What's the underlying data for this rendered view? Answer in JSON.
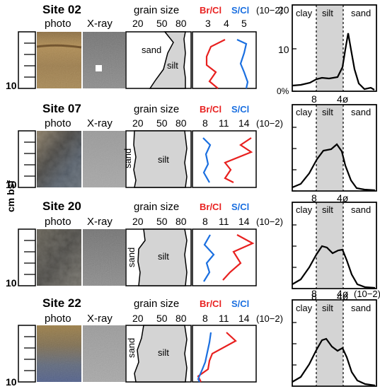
{
  "colors": {
    "br_cl": "#e8201f",
    "s_cl": "#1a6fe0",
    "silt_fill": "#d4d4d4"
  },
  "labels": {
    "photo": "photo",
    "xray": "X-ray",
    "grain_size": "grain size",
    "br_cl": "Br/Cl",
    "s_cl": "S/Cl",
    "exponent": "(10−2)",
    "cm_bsf": "cm bsf",
    "depth_max": "10",
    "grain_ticks": [
      "20",
      "50",
      "80"
    ],
    "zone_sand": "sand",
    "zone_silt": "silt",
    "zone_clay": "clay",
    "phi_8": "8",
    "phi_4": "4ø",
    "pct_20": "20",
    "pct_10": "10",
    "pct_0": "0%"
  },
  "sites": [
    {
      "name": "Site 02",
      "ratio_ticks": [
        "3",
        "4",
        "5"
      ]
    },
    {
      "name": "Site 07",
      "ratio_ticks": [
        "8",
        "11",
        "14"
      ]
    },
    {
      "name": "Site 20",
      "ratio_ticks": [
        "8",
        "11",
        "14"
      ]
    },
    {
      "name": "Site 22",
      "ratio_ticks": [
        "8",
        "11",
        "14"
      ]
    }
  ]
}
